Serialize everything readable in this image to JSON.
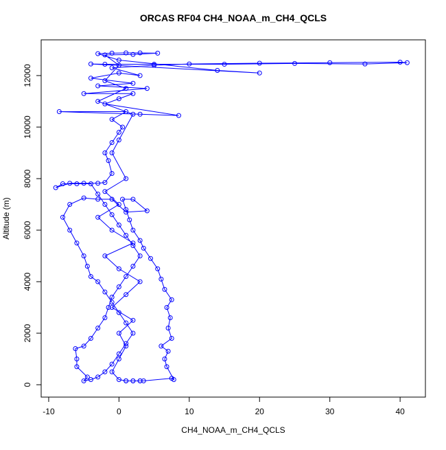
{
  "chart_data": {
    "type": "line",
    "markers": "circle",
    "title": "ORCAS RF04 CH4_NOAA_m_CH4_QCLS",
    "x_label": "CH4_NOAA_m_CH4_QCLS",
    "y_label": "Altitude (m)",
    "xlim": [
      -11.07,
      43.6
    ],
    "ylim": [
      -480,
      13387
    ],
    "xticks": [
      -10,
      0,
      10,
      20,
      30,
      40
    ],
    "yticks": [
      0,
      2000,
      4000,
      6000,
      8000,
      10000,
      12000
    ],
    "x": [
      1,
      2,
      3,
      3.5,
      7.5,
      7.8,
      6.8,
      6.5,
      7,
      6,
      7.5,
      7,
      7.3,
      6.8,
      7.5,
      6.5,
      6,
      5.5,
      4.5,
      3.5,
      3,
      2,
      1.5,
      1,
      0.5,
      2,
      4,
      1,
      -1,
      -3,
      -5,
      -7,
      -8,
      -7,
      -6,
      -5,
      -4.5,
      -4,
      -3,
      -2,
      -1,
      0,
      1,
      2,
      1,
      0,
      -1,
      -2,
      -3,
      -4,
      -5,
      -4.5,
      -6,
      -6,
      -6.2,
      -5,
      -4,
      -3,
      -2,
      -1.5,
      -1,
      0,
      1,
      2,
      3,
      2,
      1,
      0,
      -1,
      -2,
      -3,
      -4,
      -6,
      -8,
      -9,
      -7,
      -5,
      -3,
      -2,
      -1,
      -1.5,
      -2,
      -1,
      0,
      0.5,
      -1,
      1,
      -8.5,
      3,
      8.5,
      -2,
      0,
      2,
      -5,
      4,
      -3,
      2,
      -4,
      0,
      3,
      -1,
      5,
      10,
      20,
      30,
      40,
      41,
      35,
      25,
      15,
      5,
      -2,
      -4,
      20,
      14,
      0,
      -3,
      -1,
      1,
      3,
      5.5,
      2,
      -2,
      0,
      -2,
      1,
      -3,
      2,
      0,
      -1,
      1,
      -2,
      0,
      -3,
      -1,
      2,
      -2,
      0,
      3,
      1,
      -1,
      2,
      0,
      1,
      0,
      -1,
      0,
      1,
      2,
      3
    ],
    "series": [
      {
        "color": "#0000ff",
        "values": [
          150,
          150,
          150,
          150,
          250,
          200,
          700,
          1000,
          1300,
          1500,
          1800,
          2200,
          2600,
          3000,
          3300,
          3700,
          4100,
          4500,
          4900,
          5300,
          5600,
          6000,
          6400,
          6800,
          7200,
          7200,
          6750,
          6700,
          7200,
          7200,
          7250,
          7000,
          6500,
          6000,
          5500,
          5000,
          4600,
          4200,
          4000,
          3600,
          3200,
          2800,
          2400,
          2000,
          1600,
          1200,
          800,
          500,
          300,
          200,
          150,
          300,
          700,
          1000,
          1400,
          1500,
          1800,
          2200,
          2600,
          3000,
          3400,
          3800,
          4200,
          4600,
          5000,
          5400,
          5800,
          6200,
          6600,
          7000,
          7400,
          7800,
          7800,
          7800,
          7650,
          7820,
          7820,
          7820,
          7850,
          8200,
          8700,
          9000,
          9400,
          9800,
          10000,
          10300,
          10600,
          10600,
          10500,
          10450,
          10900,
          11100,
          11300,
          11300,
          11500,
          11600,
          11700,
          11900,
          12100,
          12000,
          12300,
          12400,
          12450,
          12480,
          12500,
          12520,
          12500,
          12450,
          12470,
          12440,
          12440,
          12440,
          12450,
          12100,
          12200,
          12600,
          12850,
          12870,
          12880,
          12880,
          12870,
          12820,
          12800,
          12400,
          11800,
          11500,
          11000,
          10500,
          9500,
          9000,
          8000,
          7500,
          7000,
          6500,
          6000,
          5500,
          5000,
          4500,
          4000,
          3500,
          3000,
          2500,
          2000,
          1500,
          1000,
          500,
          200,
          150,
          150,
          150
        ]
      }
    ]
  }
}
